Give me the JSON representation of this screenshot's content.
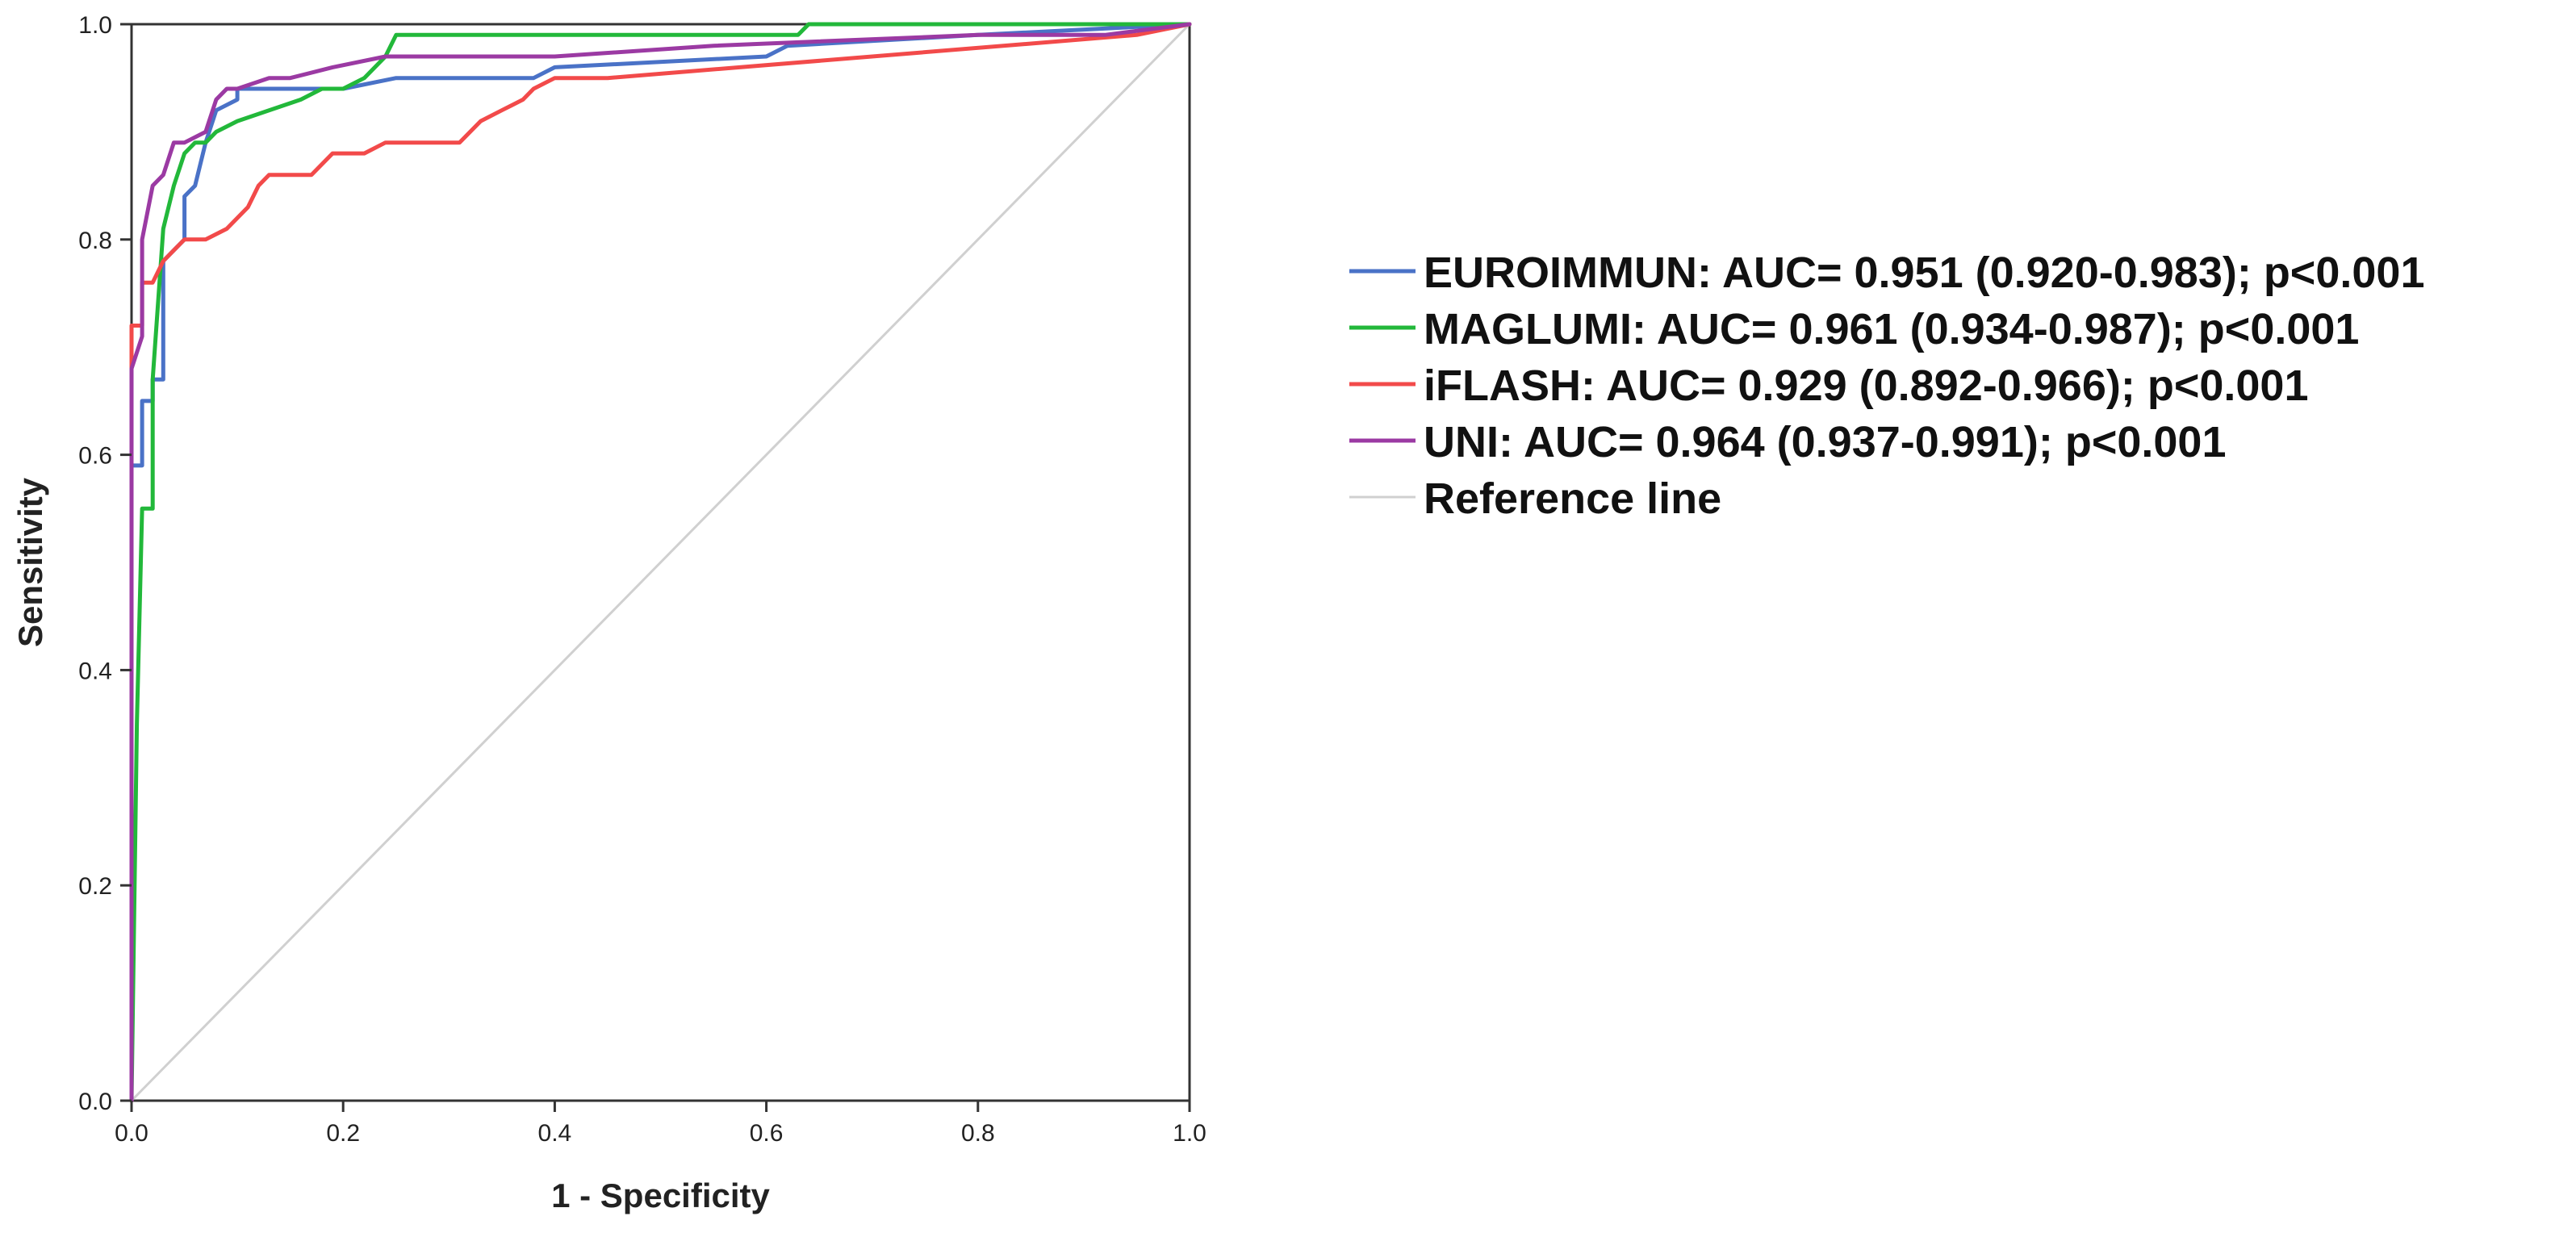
{
  "chart_data": {
    "type": "line",
    "xlabel": "1 - Specificity",
    "ylabel": "Sensitivity",
    "xlim": [
      0,
      1
    ],
    "ylim": [
      0,
      1
    ],
    "x_ticks": [
      "0.0",
      "0.2",
      "0.4",
      "0.6",
      "0.8",
      "1.0"
    ],
    "y_ticks": [
      "0.0",
      "0.2",
      "0.4",
      "0.6",
      "0.8",
      "1.0"
    ],
    "grid": false,
    "legend_position": "right",
    "series": [
      {
        "name": "EUROIMMUN: AUC= 0.951 (0.920-0.983); p<0.001",
        "color": "#4a72c7",
        "x": [
          0,
          0,
          0.01,
          0.01,
          0.02,
          0.02,
          0.03,
          0.03,
          0.04,
          0.05,
          0.05,
          0.06,
          0.07,
          0.08,
          0.1,
          0.1,
          0.15,
          0.2,
          0.25,
          0.3,
          0.38,
          0.4,
          0.6,
          0.62,
          0.8,
          1.0
        ],
        "y": [
          0,
          0.59,
          0.59,
          0.65,
          0.65,
          0.67,
          0.67,
          0.78,
          0.79,
          0.8,
          0.84,
          0.85,
          0.89,
          0.92,
          0.93,
          0.94,
          0.94,
          0.94,
          0.95,
          0.95,
          0.95,
          0.96,
          0.97,
          0.98,
          0.99,
          1.0
        ]
      },
      {
        "name": "MAGLUMI: AUC= 0.961 (0.934-0.987); p<0.001",
        "color": "#22b83a",
        "x": [
          0,
          0.005,
          0.01,
          0.01,
          0.02,
          0.02,
          0.03,
          0.04,
          0.05,
          0.06,
          0.07,
          0.08,
          0.1,
          0.13,
          0.16,
          0.18,
          0.2,
          0.22,
          0.24,
          0.25,
          0.27,
          0.4,
          0.63,
          0.64,
          0.8,
          1.0
        ],
        "y": [
          0,
          0.35,
          0.55,
          0.55,
          0.55,
          0.67,
          0.81,
          0.85,
          0.88,
          0.89,
          0.89,
          0.9,
          0.91,
          0.92,
          0.93,
          0.94,
          0.94,
          0.95,
          0.97,
          0.99,
          0.99,
          0.99,
          0.99,
          1.0,
          1.0,
          1.0
        ]
      },
      {
        "name": "iFLASH: AUC= 0.929 (0.892-0.966); p<0.001",
        "color": "#f24a4a",
        "x": [
          0,
          0,
          0.01,
          0.01,
          0.02,
          0.03,
          0.04,
          0.05,
          0.07,
          0.09,
          0.1,
          0.11,
          0.12,
          0.13,
          0.15,
          0.17,
          0.19,
          0.22,
          0.24,
          0.31,
          0.33,
          0.35,
          0.37,
          0.38,
          0.4,
          0.45,
          0.95,
          1.0
        ],
        "y": [
          0,
          0.72,
          0.72,
          0.76,
          0.76,
          0.78,
          0.79,
          0.8,
          0.8,
          0.81,
          0.82,
          0.83,
          0.85,
          0.86,
          0.86,
          0.86,
          0.88,
          0.88,
          0.89,
          0.89,
          0.91,
          0.92,
          0.93,
          0.94,
          0.95,
          0.95,
          0.99,
          1.0
        ]
      },
      {
        "name": "UNI: AUC= 0.964 (0.937-0.991); p<0.001",
        "color": "#9b3aa3",
        "x": [
          0,
          0,
          0.01,
          0.01,
          0.02,
          0.02,
          0.03,
          0.04,
          0.05,
          0.07,
          0.08,
          0.09,
          0.1,
          0.13,
          0.15,
          0.19,
          0.24,
          0.3,
          0.4,
          0.55,
          0.8,
          0.92,
          1.0
        ],
        "y": [
          0,
          0.68,
          0.71,
          0.8,
          0.85,
          0.85,
          0.86,
          0.89,
          0.89,
          0.9,
          0.93,
          0.94,
          0.94,
          0.95,
          0.95,
          0.96,
          0.97,
          0.97,
          0.97,
          0.98,
          0.99,
          0.99,
          1.0
        ]
      },
      {
        "name": "Reference line",
        "color": "#d0d0d0",
        "x": [
          0,
          1
        ],
        "y": [
          0,
          1
        ]
      }
    ]
  }
}
